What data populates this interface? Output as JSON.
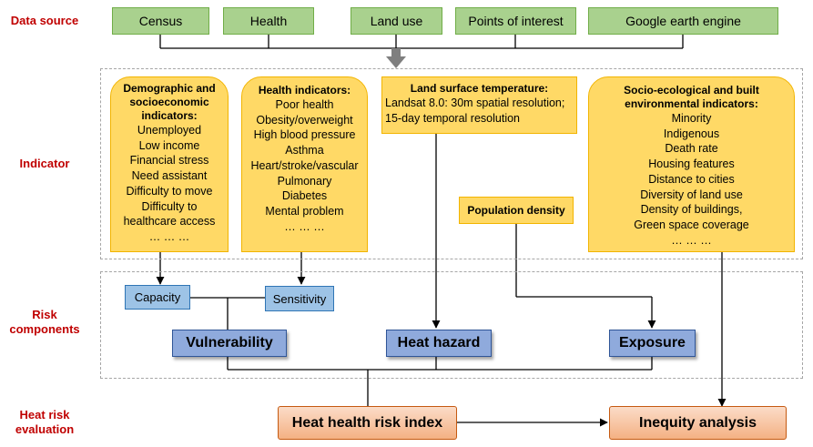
{
  "row_labels": {
    "data_source": "Data source",
    "indicator": "Indicator",
    "risk_line1": "Risk",
    "risk_line2": "components",
    "heat_line1": "Heat risk",
    "heat_line2": "evaluation"
  },
  "data_sources": [
    "Census",
    "Health",
    "Land use",
    "Points of interest",
    "Google earth engine"
  ],
  "indicators": {
    "demographic": {
      "head": [
        "Demographic and",
        "socioeconomic",
        "indicators:"
      ],
      "items": [
        "Unemployed",
        "Low income",
        "Financial stress",
        "Need assistant",
        "Difficulty to move",
        "Difficulty to",
        "healthcare access",
        "… … …"
      ]
    },
    "health": {
      "head": [
        "Health indicators:"
      ],
      "items": [
        "Poor health",
        "Obesity/overweight",
        "High blood pressure",
        "Asthma",
        "Heart/stroke/vascular",
        "Pulmonary",
        "Diabetes",
        "Mental problem",
        "… … …"
      ]
    },
    "lst": {
      "head": [
        "Land surface temperature:"
      ],
      "items": [
        "Landsat 8.0: 30m spatial resolution;",
        "15-day temporal resolution"
      ]
    },
    "population": {
      "label": "Population density"
    },
    "socio": {
      "head": [
        "Socio-ecological and built",
        "environmental indicators:"
      ],
      "items": [
        "Minority",
        "Indigenous",
        "Death rate",
        "Housing features",
        "Distance to cities",
        "Diversity of land use",
        "Density of buildings,",
        "Green space coverage",
        "… … …"
      ]
    }
  },
  "components": {
    "capacity": "Capacity",
    "sensitivity": "Sensitivity",
    "vulnerability": "Vulnerability",
    "heat_hazard": "Heat hazard",
    "exposure": "Exposure"
  },
  "evaluation": {
    "hhri": "Heat health risk index",
    "inequity": "Inequity analysis"
  },
  "colors": {
    "label_red": "#c00000",
    "source_green": "#a9d18e",
    "indicator_yellow": "#ffd966",
    "component_light_blue": "#9dc3e6",
    "component_blue": "#8faadc",
    "evaluation_orange": "#f8cbad"
  }
}
